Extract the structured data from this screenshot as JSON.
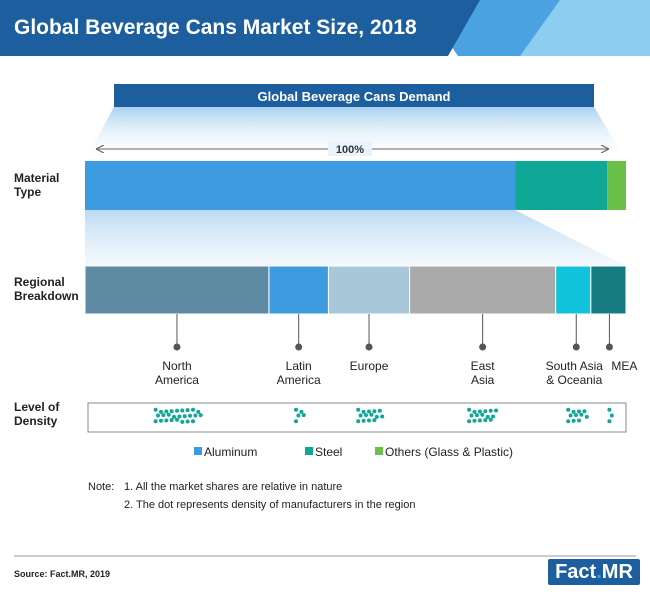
{
  "header": {
    "title": "Global Beverage Cans Market Size, 2018"
  },
  "demand_label": "Global Beverage Cans Demand",
  "total_label": "100%",
  "row_labels": {
    "material": [
      "Material",
      "Type"
    ],
    "regional": [
      "Regional",
      "Breakdown"
    ],
    "density": [
      "Level of",
      "Density"
    ]
  },
  "colors": {
    "header": "#1d5e9e",
    "aluminum": "#3d9be0",
    "steel": "#0fa896",
    "others": "#6cc04a",
    "north_america": "#5f8aa4",
    "latin_america": "#3d9be0",
    "europe": "#a8c8da",
    "east_asia": "#aaaaaa",
    "south_asia": "#11c3db",
    "mea": "#177c82",
    "dots": "#0fa896"
  },
  "chart_data": {
    "type": "bar",
    "title": "Global Beverage Cans Market Size, 2018",
    "material_type": [
      {
        "name": "Aluminum",
        "share": 0.795,
        "color": "#3d9be0"
      },
      {
        "name": "Steel",
        "share": 0.17,
        "color": "#0fa896"
      },
      {
        "name": "Others (Glass & Plastic)",
        "share": 0.035,
        "color": "#6cc04a"
      }
    ],
    "regional_breakdown": [
      {
        "name": [
          "North",
          "America"
        ],
        "share": 0.34,
        "density": 5,
        "color": "#5f8aa4"
      },
      {
        "name": [
          "Latin",
          "America"
        ],
        "share": 0.11,
        "density": 2,
        "color": "#3d9be0"
      },
      {
        "name": [
          "Europe"
        ],
        "share": 0.15,
        "density": 4,
        "color": "#a8c8da"
      },
      {
        "name": [
          "East",
          "Asia"
        ],
        "share": 0.27,
        "density": 4,
        "color": "#aaaaaa"
      },
      {
        "name": [
          "South Asia",
          "& Oceania"
        ],
        "share": 0.065,
        "density": 3,
        "color": "#11c3db"
      },
      {
        "name": [
          "MEA"
        ],
        "share": 0.065,
        "density": 1,
        "color": "#177c82"
      }
    ],
    "legend": [
      "Aluminum",
      "Steel",
      "Others (Glass & Plastic)"
    ]
  },
  "notes": {
    "prefix": "Note:",
    "items": [
      "1. All the market shares are relative in nature",
      "2. The dot represents density of manufacturers in the region"
    ]
  },
  "source": "Source: Fact.MR, 2019",
  "logo": {
    "part1": "Fact",
    "dot": ".",
    "part2": "MR"
  }
}
